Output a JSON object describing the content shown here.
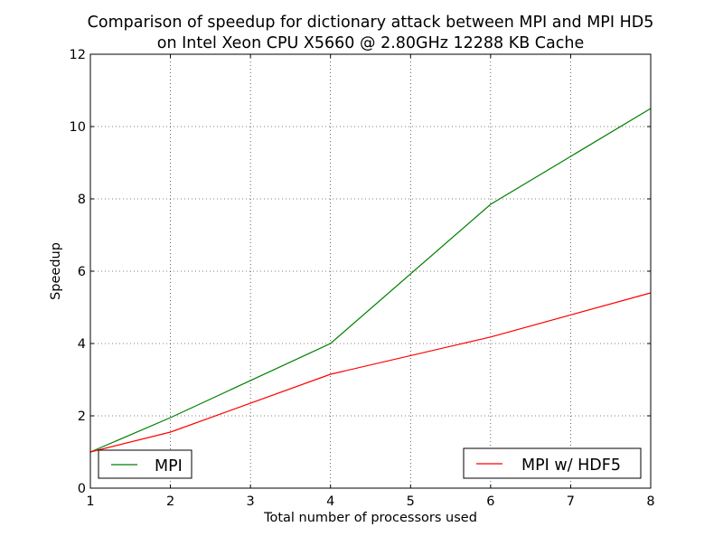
{
  "chart_data": {
    "type": "line",
    "title_line1": "Comparison of speedup for dictionary attack between MPI and MPI HD5",
    "title_line2": "on Intel Xeon CPU X5660 @ 2.80GHz 12288 KB Cache",
    "xlabel": "Total number of processors used",
    "ylabel": "Speedup",
    "xlim": [
      1,
      8
    ],
    "ylim": [
      0,
      12
    ],
    "xticks": [
      1,
      2,
      3,
      4,
      5,
      6,
      7,
      8
    ],
    "yticks": [
      0,
      2,
      4,
      6,
      8,
      10,
      12
    ],
    "grid": true,
    "series": [
      {
        "name": "MPI",
        "color": "#008000",
        "legend_location": "lower-left",
        "x": [
          1,
          2,
          4,
          6,
          8
        ],
        "y": [
          1.0,
          1.95,
          4.0,
          7.85,
          10.5
        ]
      },
      {
        "name": "MPI w/ HDF5",
        "color": "#ff0000",
        "legend_location": "lower-right",
        "x": [
          1,
          2,
          4,
          6,
          8
        ],
        "y": [
          1.0,
          1.55,
          3.15,
          4.18,
          5.4
        ]
      }
    ]
  }
}
